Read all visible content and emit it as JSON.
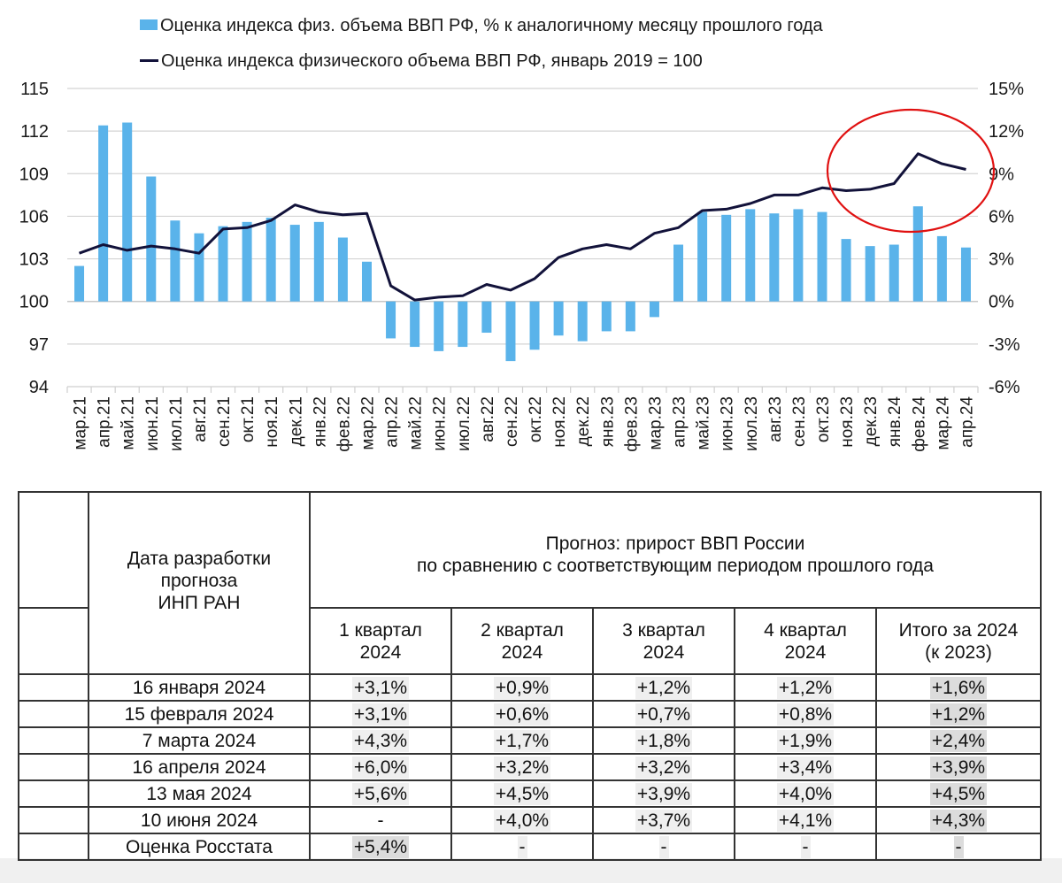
{
  "chart_data": {
    "type": "bar+line",
    "categories": [
      "мар.21",
      "апр.21",
      "май.21",
      "июн.21",
      "июл.21",
      "авг.21",
      "сен.21",
      "окт.21",
      "ноя.21",
      "дек.21",
      "янв.22",
      "фев.22",
      "мар.22",
      "апр.22",
      "май.22",
      "июн.22",
      "июл.22",
      "авг.22",
      "сен.22",
      "окт.22",
      "ноя.22",
      "дек.22",
      "янв.23",
      "фев.23",
      "мар.23",
      "апр.23",
      "май.23",
      "июн.23",
      "июл.23",
      "авг.23",
      "сен.23",
      "окт.23",
      "ноя.23",
      "дек.23",
      "янв.24",
      "фев.24",
      "мар.24",
      "апр.24"
    ],
    "series": [
      {
        "name": "Оценка индекса физ. объема ВВП РФ, % к аналогичному месяцу прошлого года",
        "type": "bar",
        "axis": "right",
        "color": "#5ab3ea",
        "values": [
          2.5,
          12.4,
          12.6,
          8.8,
          5.7,
          4.8,
          5.3,
          5.6,
          5.9,
          5.4,
          5.6,
          4.5,
          2.8,
          -2.6,
          -3.2,
          -3.5,
          -3.2,
          -2.2,
          -4.2,
          -3.4,
          -2.4,
          -2.8,
          -2.1,
          -2.1,
          -1.1,
          4.0,
          6.3,
          6.1,
          6.5,
          6.2,
          6.5,
          6.3,
          4.4,
          3.9,
          4.0,
          6.7,
          4.6,
          3.8
        ]
      },
      {
        "name": "Оценка индекса физического объема ВВП РФ, январь 2019 = 100",
        "type": "line",
        "axis": "left",
        "color": "#12123a",
        "values": [
          103.4,
          104.0,
          103.6,
          103.9,
          103.7,
          103.4,
          105.1,
          105.2,
          105.7,
          106.8,
          106.3,
          106.1,
          106.2,
          101.1,
          100.1,
          100.3,
          100.4,
          101.2,
          100.8,
          101.6,
          103.1,
          103.7,
          104.0,
          103.7,
          104.8,
          105.2,
          106.4,
          106.5,
          106.9,
          107.5,
          107.5,
          108.0,
          107.8,
          107.9,
          108.3,
          110.4,
          109.7,
          109.3
        ]
      }
    ],
    "y_left": {
      "ylim": [
        94,
        115
      ],
      "ticks": [
        "94",
        "97",
        "100",
        "103",
        "106",
        "109",
        "112",
        "115"
      ]
    },
    "y_right": {
      "ylim": [
        -6,
        15
      ],
      "ticks": [
        "-6%",
        "-3%",
        "0%",
        "3%",
        "6%",
        "9%",
        "12%",
        "15%"
      ]
    },
    "grid": true,
    "legend_placement": "top",
    "annotation": {
      "type": "ellipse",
      "color": "#e01010",
      "around": [
        "ноя.23",
        "апр.24"
      ]
    }
  },
  "table": {
    "date_header": [
      "Дата разработки",
      "прогноза",
      "ИНП РАН"
    ],
    "forecast_header": [
      "Прогноз: прирост ВВП России",
      "по сравнению с соответствующим периодом прошлого года"
    ],
    "columns": [
      [
        "1 квартал",
        "2024"
      ],
      [
        "2 квартал",
        "2024"
      ],
      [
        "3 квартал",
        "2024"
      ],
      [
        "4 квартал",
        "2024"
      ],
      [
        "Итого за 2024",
        "(к 2023)"
      ]
    ],
    "rows": [
      {
        "date": "16 января 2024",
        "values": [
          "+3,1%",
          "+0,9%",
          "+1,2%",
          "+1,2%",
          "+1,6%"
        ]
      },
      {
        "date": "15 февраля 2024",
        "values": [
          "+3,1%",
          "+0,6%",
          "+0,7%",
          "+0,8%",
          "+1,2%"
        ]
      },
      {
        "date": "7 марта 2024",
        "values": [
          "+4,3%",
          "+1,7%",
          "+1,8%",
          "+1,9%",
          "+2,4%"
        ]
      },
      {
        "date": "16 апреля 2024",
        "values": [
          "+6,0%",
          "+3,2%",
          "+3,2%",
          "+3,4%",
          "+3,9%"
        ]
      },
      {
        "date": "13 мая 2024",
        "values": [
          "+5,6%",
          "+4,5%",
          "+3,9%",
          "+4,0%",
          "+4,5%"
        ]
      },
      {
        "date": "10 июня 2024",
        "values": [
          "-",
          "+4,0%",
          "+3,7%",
          "+4,1%",
          "+4,3%"
        ]
      },
      {
        "date": "Оценка Росстата",
        "values": [
          "+5,4%",
          "-",
          "-",
          "-",
          "-"
        ]
      }
    ]
  }
}
